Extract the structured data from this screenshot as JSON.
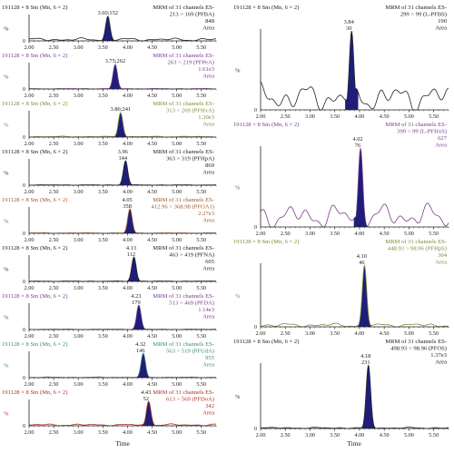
{
  "x_label": "Time",
  "x_ticks": [
    "2.00",
    "2.50",
    "3.00",
    "3.50",
    "4.00",
    "4.50",
    "5.00",
    "5.50"
  ],
  "colors": {
    "peak_fill": "#1e1e7a",
    "axis": "#222222",
    "black": "#222222",
    "purple": "#7a3c8c",
    "olive": "#7f8a3a",
    "brown": "#a05a2a",
    "teal": "#3a8a7a",
    "red": "#b0301e"
  },
  "chart_data": [
    {
      "type": "line",
      "id": "pfba",
      "color": "black",
      "header": "191128 × 8 Sm (Mn, 6 × 2)",
      "channel": "MRM of 31 channels ES-",
      "transition": "213 > 169 (PFBA)",
      "area": "848",
      "area_label": "Area",
      "y_label": "%",
      "xlim": [
        2.0,
        5.8
      ],
      "peak_rt": 3.6,
      "peak_label": "3.60;152",
      "noise": 0.12
    },
    {
      "type": "line",
      "id": "pfpea",
      "color": "purple",
      "header": "191128 × 8 Sm (Mn, 6 × 2)",
      "channel": "MRM of 31 channels ES-",
      "transition": "263 > 219 (PFPeA)",
      "area": "1.61e3",
      "area_label": "Area",
      "y_label": "%",
      "xlim": [
        2.0,
        5.8
      ],
      "peak_rt": 3.75,
      "peak_label": "3.75;262",
      "noise": 0.02
    },
    {
      "type": "line",
      "id": "pfhxa",
      "color": "olive",
      "header": "191128 × 8 Sm (Mn, 6 × 2)",
      "channel": "MRM of 31 channels ES-",
      "transition": "313 > 269 (PFHxA)",
      "area": "1.30e3",
      "area_label": "Area",
      "y_label": "%",
      "xlim": [
        2.0,
        5.8
      ],
      "peak_rt": 3.86,
      "peak_label": "3.86;241",
      "noise": 0.04
    },
    {
      "type": "line",
      "id": "pfhpa",
      "color": "black",
      "header": "191128 × 8 Sm (Mn, 6 × 2)",
      "channel": "MRM of 31 channels ES-",
      "transition": "363 > 319 (PFHpA)",
      "area": "869",
      "area_label": "Area",
      "y_label": "%",
      "xlim": [
        2.0,
        5.8
      ],
      "peak_rt": 3.96,
      "peak_label": "3.96",
      "peak_label2": "144",
      "noise": 0.02
    },
    {
      "type": "line",
      "id": "pfoa1",
      "color": "brown",
      "header": "191128 × 8 Sm (Mn, 6 × 2)",
      "channel": "MRM of 31 channels ES-",
      "transition": "412.96 > 368.98 (PFOA1)",
      "area": "2.27e3",
      "area_label": "Area",
      "y_label": "%",
      "xlim": [
        2.0,
        5.8
      ],
      "peak_rt": 4.05,
      "peak_label": "4.05",
      "peak_label2": "358",
      "noise": 0.02
    },
    {
      "type": "line",
      "id": "pfna",
      "color": "black",
      "header": "191128 × 8 Sm (Mn, 6 × 2)",
      "channel": "MRM of 31 channels ES-",
      "transition": "463 > 419 (PFNA)",
      "area": "605",
      "area_label": "Area",
      "y_label": "%",
      "xlim": [
        2.0,
        5.8
      ],
      "peak_rt": 4.13,
      "peak_label": "4.13",
      "peak_label2": "112",
      "noise": 0.02
    },
    {
      "type": "line",
      "id": "pfda",
      "color": "purple",
      "header": "191128 × 8 Sm (Mn, 6 × 2)",
      "channel": "MRM of 31 channels ES-",
      "transition": "513 > 469 (PFDA)",
      "area": "1.14e3",
      "area_label": "Area",
      "y_label": "%",
      "xlim": [
        2.0,
        5.8
      ],
      "peak_rt": 4.23,
      "peak_label": "4.23",
      "peak_label2": "179",
      "noise": 0.02
    },
    {
      "type": "line",
      "id": "pfuda",
      "color": "teal",
      "header": "191128 × 8 Sm (Mn, 6 × 2)",
      "channel": "MRM of 31 channels ES-",
      "transition": "563 > 519 (PFUdA)",
      "area": "955",
      "area_label": "Area",
      "y_label": "%",
      "xlim": [
        2.0,
        5.8
      ],
      "peak_rt": 4.32,
      "peak_label": "4.32",
      "peak_label2": "146",
      "noise": 0.03
    },
    {
      "type": "line",
      "id": "pfdoa",
      "color": "red",
      "header": "191128 × 8 Sm (Mn, 6 × 2)",
      "channel": "MRM of 31 channels ES-",
      "transition": "613 > 569 (PFDoA)",
      "area": "342",
      "area_label": "Area",
      "y_label": "%",
      "xlim": [
        2.0,
        5.8
      ],
      "peak_rt": 4.43,
      "peak_label": "4.43",
      "peak_label2": "52",
      "noise": 0.08
    },
    {
      "type": "line",
      "id": "lpfbs",
      "color": "black",
      "header": "191128 × 8 Sm (Mn, 6 × 2)",
      "channel": "MRM of 31 channels ES-",
      "transition": "299 > 99 (L-PFBS)",
      "area": "190",
      "area_label": "Area",
      "y_label": "%",
      "xlim": [
        2.0,
        5.8
      ],
      "peak_rt": 3.84,
      "peak_label": "3.84",
      "peak_label2": "30",
      "noise": 0.35
    },
    {
      "type": "line",
      "id": "lpfhxs",
      "color": "purple",
      "header": "191128 × 8 Sm (Mn, 6 × 2)",
      "channel": "MRM of 31 channels ES-",
      "transition": "399 > 99 (L-PFHxS)",
      "area": "627",
      "area_label": "Area",
      "y_label": "%",
      "xlim": [
        2.0,
        5.8
      ],
      "peak_rt": 4.02,
      "peak_label": "4.02",
      "peak_label2": "76",
      "noise": 0.3
    },
    {
      "type": "line",
      "id": "pfhps",
      "color": "olive",
      "header": "191128 × 8 Sm (Mn, 6 × 2)",
      "channel": "MRM of 31 channels ES-",
      "transition": "448.93 > 98.96 (PFHpS)",
      "area": "304",
      "area_label": "Area",
      "y_label": "%",
      "xlim": [
        2.0,
        5.8
      ],
      "peak_rt": 4.1,
      "peak_label": "4.10",
      "peak_label2": "46",
      "noise": 0.06
    },
    {
      "type": "line",
      "id": "pfos",
      "color": "black",
      "header": "191128 × 8 Sm (Mn, 6 × 2)",
      "channel": "MRM of 31 channels ES-",
      "transition": "498.93 > 98.96 (PFOS)",
      "area": "1.37e3",
      "area_label": "Area",
      "y_label": "%",
      "xlim": [
        2.0,
        5.8
      ],
      "peak_rt": 4.18,
      "peak_label": "4.18",
      "peak_label2": "231",
      "noise": 0.02
    }
  ]
}
